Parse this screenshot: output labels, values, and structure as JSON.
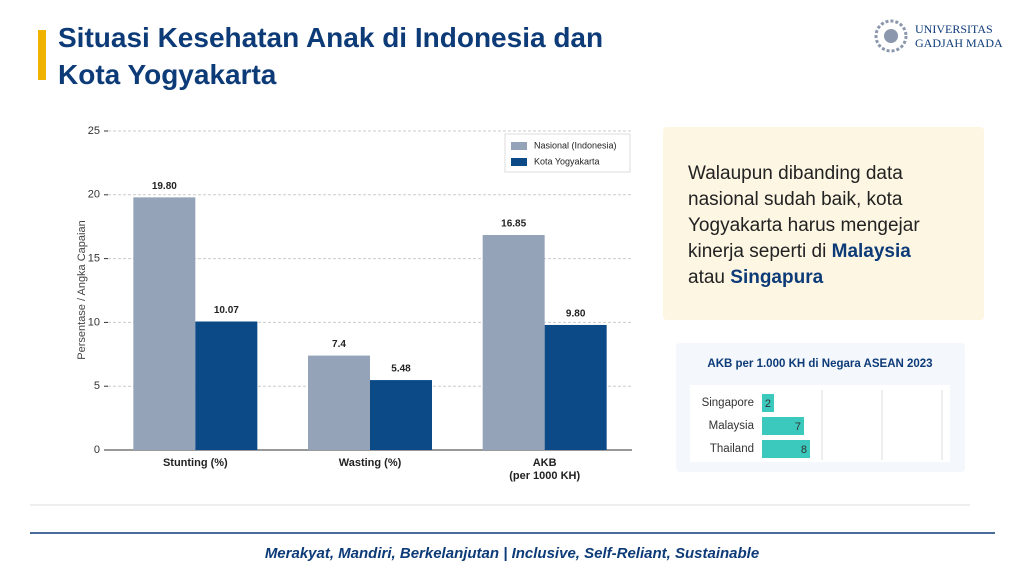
{
  "header": {
    "title": "Situasi Kesehatan Anak di Indonesia dan Kota Yogyakarta",
    "logo_line1": "UNIVERSITAS",
    "logo_line2": "GADJAH MADA"
  },
  "callout": {
    "text_before": "Walaupun dibanding data nasional sudah baik, kota Yogyakarta harus mengejar kinerja seperti di",
    "highlight1": "Malaysia",
    "text_middle": "atau",
    "highlight2": "Singapura"
  },
  "footer": {
    "tagline": "Merakyat, Mandiri, Berkelanjutan | Inclusive, Self-Reliant, Sustainable"
  },
  "chart_data": [
    {
      "type": "bar",
      "y_label": "Persentase / Angka Capaian",
      "categories": [
        "Stunting (%)",
        "Wasting (%)",
        "AKB\n(per 1000 KH)"
      ],
      "series": [
        {
          "name": "Nasional (Indonesia)",
          "color": "#95a3b9",
          "values": [
            19.8,
            7.4,
            16.85
          ],
          "value_labels": [
            "19.80",
            "7.4",
            "16.85"
          ]
        },
        {
          "name": "Kota Yogyakarta",
          "color": "#0b4a87",
          "values": [
            10.07,
            5.48,
            9.8
          ],
          "value_labels": [
            "10.07",
            "5.48",
            "9.80"
          ]
        }
      ],
      "ylim": [
        0,
        25
      ],
      "yticks": [
        0,
        5,
        10,
        15,
        20,
        25
      ],
      "grid": true,
      "legend": "upper-right"
    },
    {
      "type": "hbar",
      "title": "AKB per 1.000 KH di Negara ASEAN 2023",
      "categories": [
        "Singapore",
        "Malaysia",
        "Thailand"
      ],
      "values": [
        2,
        7,
        8
      ],
      "color": "#3cc9bd",
      "xlim": [
        0,
        30
      ]
    }
  ]
}
